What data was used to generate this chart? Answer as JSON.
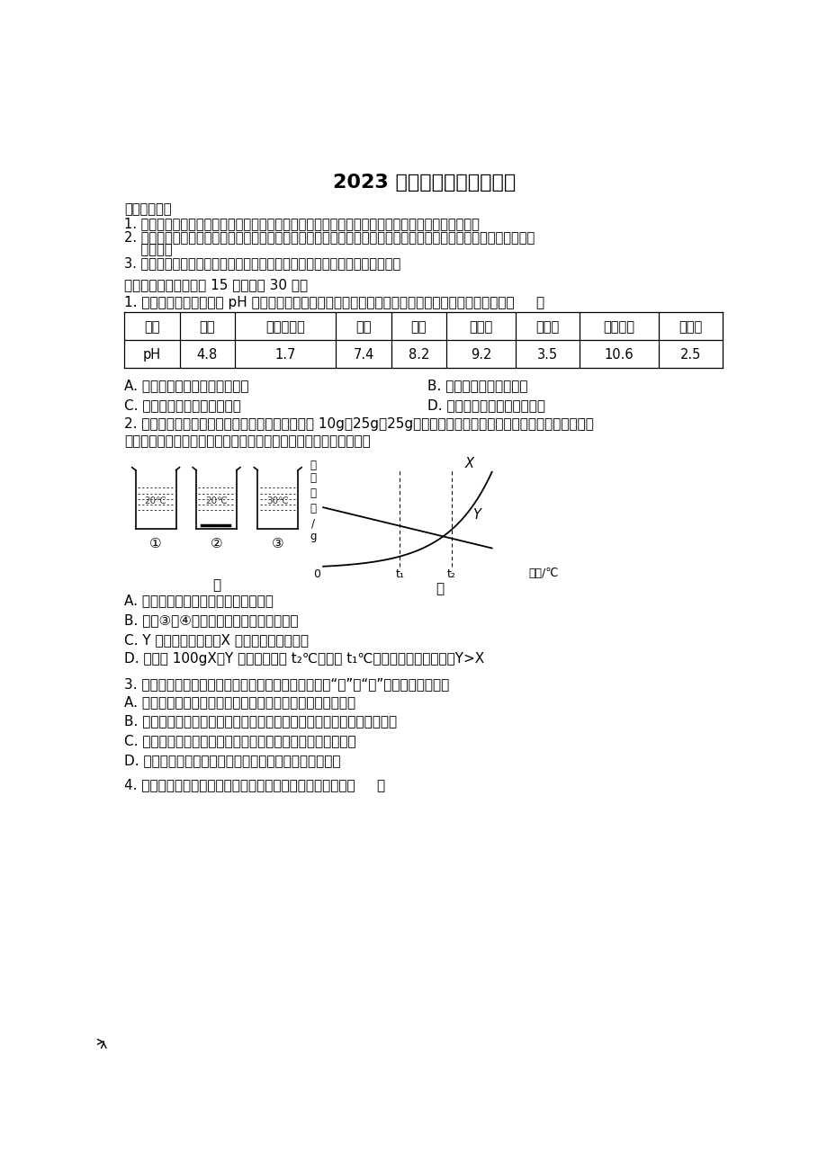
{
  "title": "2023 学年中考化学模拟试卷",
  "background": "#ffffff",
  "notes_header": "考生请注意：",
  "note1": "1. 答题前请将考场、试室号、座位号、考生号、姓名写在试卷密封线内，不得在试卷上作任何标记。",
  "note2": "2. 第一部分选择题每小题选出答案后，需将答案写在试卷指定的括号内，第二部分非选择题答案写在试卷题目指定的",
  "note2b": "    位置上。",
  "note3": "3. 考生必须保证答题卡的整洁。考试结束后，请将本试卷和答题卡一并交回。",
  "section1": "一、单选题（本大题八 15 小题，八 30 分）",
  "q1": "1. 结合下表中所列物质的 pH 判断，在下列各组物质分别能使紫色石蕊溶液变红、不变色、变蓝的是（     ）",
  "row1": [
    "物质",
    "酱油",
    "厕所清洁剂",
    "血浆",
    "牙膏",
    "肥皂水",
    "橘子汁",
    "草木灰水",
    "柠檬汁"
  ],
  "row2": [
    "pH",
    "4.8",
    "1.7",
    "7.4",
    "8.2",
    "9.2",
    "3.5",
    "10.6",
    "2.5"
  ],
  "q1_optA": "A. 柠檬汁、食盐水、厕所清洁剂",
  "q1_optB": "B. 牙膏、蕌馏水、肥皂水",
  "q1_optC": "C. 草木灰水、蕌馏水、柠檬汁",
  "q1_optD": "D. 橘子汁、食盐水、草木灰水",
  "q2_line1": "2. 向盛有等量水的三个烧杯中分别加入某固体物质 10g、25g、25g，如图甲所示是充分溶解后的现象，如图乙所示是",
  "q2_line2": "该固体物质和另一种固体物质的溶解度曲线，下列有关说法正确的是",
  "q2_optA": "A. 三个烧杯中形成的溶液都是饱和溶液",
  "q2_optB": "B. 烧杯③、④的溶液中溶质的质量分数相等",
  "q2_optC": "C. Y 代表该固体物质，X 代表另一种固体物质",
  "q2_optD": "D. 分别将 100gX、Y 的饱和溶液从 t₂℃降温到 t₁℃，所得到的溶液质量：Y>X",
  "q3": "3. 规范实验操作是我们完成实验的保障。下列操作中，“先”与“后”的顺序不正确的是",
  "q3_optA": "A. 用酒精灯加热试管中液体时，先预热，后对准液体集中加热",
  "q3_optB": "B. 在检查装置气密性的时候，先用双手紧握容器外壁，后将导管浸入水中",
  "q3_optC": "C. 用排水法收集完氧气时，先把导管移出水面，后息灭酒精灯",
  "q3_optD": "D. 做氢气可燃性实验时，先检验氢气的纯度，后点燃气体",
  "q4": "4. 除去下列各组物质中的杂质，所用试剂和方法均正确的是（     ）"
}
